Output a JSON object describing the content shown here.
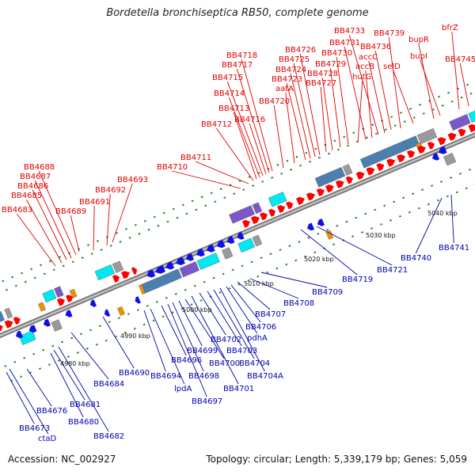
{
  "title": "Bordetella bronchiseptica RB50, complete genome",
  "accession_text": "Accession: NC_002927",
  "stats_text": "Topology: circular; Length: 5,339,179 bp; Genes: 5,059",
  "colors": {
    "forward_gene": "#ff0000",
    "reverse_gene": "#1010e0",
    "backbone": "#888888",
    "tick": "#2a8a2a",
    "forward_label": "#e00000",
    "reverse_label": "#0000b0",
    "feature_cyan": "#00e8f0",
    "feature_steel": "#4a7fb0",
    "feature_purple": "#7b58c8",
    "feature_grey": "#9a9a9a",
    "feature_orange": "#f09000"
  },
  "kbp_labels": [
    "4980 kbp",
    "4990 kbp",
    "5000 kbp",
    "5010 kbp",
    "5020 kbp",
    "5030 kbp",
    "5040 kbp"
  ],
  "forward_genes": [
    {
      "label": "BB4683"
    },
    {
      "label": "BB4685"
    },
    {
      "label": "BB4686"
    },
    {
      "label": "BB4687"
    },
    {
      "label": "BB4688"
    },
    {
      "label": "BB4689"
    },
    {
      "label": "BB4691"
    },
    {
      "label": "BB4692"
    },
    {
      "label": "BB4693"
    },
    {
      "label": "BB4710"
    },
    {
      "label": "BB4711"
    },
    {
      "label": "BB4712"
    },
    {
      "label": "BB4713"
    },
    {
      "label": "BB4714"
    },
    {
      "label": "BB4715"
    },
    {
      "label": "BB4716"
    },
    {
      "label": "BB4717"
    },
    {
      "label": "BB4718"
    },
    {
      "label": "BB4720"
    },
    {
      "label": "aatA"
    },
    {
      "label": "BB4723"
    },
    {
      "label": "BB4724"
    },
    {
      "label": "BB4725"
    },
    {
      "label": "BB4726"
    },
    {
      "label": "BB4727"
    },
    {
      "label": "BB4728"
    },
    {
      "label": "BB4729"
    },
    {
      "label": "BB4730"
    },
    {
      "label": "hutG"
    },
    {
      "label": "BB4731"
    },
    {
      "label": "accB"
    },
    {
      "label": "BB4733"
    },
    {
      "label": "accC"
    },
    {
      "label": "BB4736"
    },
    {
      "label": "BB4739"
    },
    {
      "label": "selD"
    },
    {
      "label": "bupR"
    },
    {
      "label": "bupI"
    },
    {
      "label": "bfrZ"
    },
    {
      "label": "BB4745"
    }
  ],
  "reverse_genes": [
    {
      "label": "BB4673"
    },
    {
      "label": "ctaD"
    },
    {
      "label": "BB4676"
    },
    {
      "label": "BB4680"
    },
    {
      "label": "BB4681"
    },
    {
      "label": "BB4682"
    },
    {
      "label": "BB4684"
    },
    {
      "label": "BB4690"
    },
    {
      "label": "BB4694"
    },
    {
      "label": "lpdA"
    },
    {
      "label": "BB4696"
    },
    {
      "label": "BB4697"
    },
    {
      "label": "BB4698"
    },
    {
      "label": "BB4699"
    },
    {
      "label": "BB4700"
    },
    {
      "label": "BB4701"
    },
    {
      "label": "BB4702"
    },
    {
      "label": "BB4703"
    },
    {
      "label": "BB4704"
    },
    {
      "label": "BB4704A"
    },
    {
      "label": "pdhA"
    },
    {
      "label": "BB4706"
    },
    {
      "label": "BB4707"
    },
    {
      "label": "BB4708"
    },
    {
      "label": "BB4709"
    },
    {
      "label": "BB4719"
    },
    {
      "label": "BB4721"
    },
    {
      "label": "BB4740"
    },
    {
      "label": "BB4741"
    }
  ]
}
